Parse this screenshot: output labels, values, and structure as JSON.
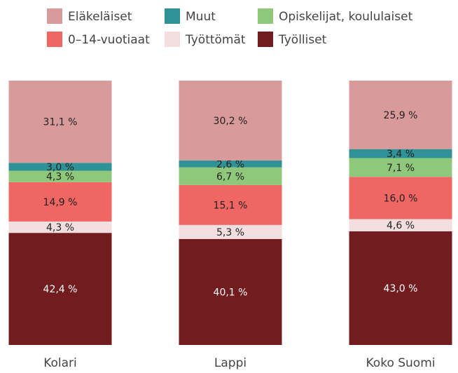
{
  "chart_data": {
    "type": "stacked_bar",
    "categories": [
      "Kolari",
      "Lappi",
      "Koko Suomi"
    ],
    "series": [
      {
        "name": "Työlliset",
        "color": "#731c1f",
        "values": [
          42.4,
          40.1,
          43.0
        ],
        "value_labels": [
          "42,4 %",
          "40,1 %",
          "43,0 %"
        ]
      },
      {
        "name": "Työttömät",
        "color": "#f2dede",
        "values": [
          4.3,
          5.3,
          4.6
        ],
        "value_labels": [
          "4,3 %",
          "5,3 %",
          "4,6 %"
        ]
      },
      {
        "name": "0–14-vuotiaat",
        "color": "#ef6663",
        "values": [
          14.9,
          15.1,
          16.0
        ],
        "value_labels": [
          "14,9 %",
          "15,1 %",
          "16,0 %"
        ]
      },
      {
        "name": "Opiskelijat, koululaiset",
        "color": "#8fc87a",
        "values": [
          4.3,
          6.7,
          7.1
        ],
        "value_labels": [
          "4,3 %",
          "6,7 %",
          "7,1 %"
        ]
      },
      {
        "name": "Muut",
        "color": "#2e9296",
        "values": [
          3.0,
          2.6,
          3.4
        ],
        "value_labels": [
          "3,0 %",
          "2,6 %",
          "3,4 %"
        ]
      },
      {
        "name": "Eläkeläiset",
        "color": "#d99a9c",
        "values": [
          31.1,
          30.2,
          25.9
        ],
        "value_labels": [
          "31,1 %",
          "30,2 %",
          "25,9 %"
        ]
      }
    ]
  }
}
